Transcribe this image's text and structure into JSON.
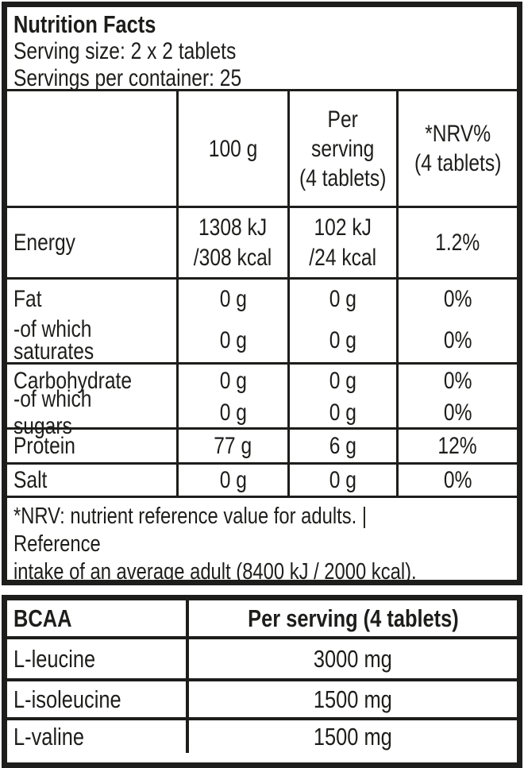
{
  "label": {
    "title": "Nutrition Facts",
    "serving_size": "Serving size: 2 x 2 tablets",
    "servings_per_container": "Servings per container: 25"
  },
  "nutrition_table": {
    "col_headers": {
      "per_100g": "100 g",
      "per_serving": "Per\nserving\n(4 tablets)",
      "nrv": "*NRV%\n(4 tablets)"
    },
    "rows": [
      {
        "label": "Energy",
        "per_100g": "1308 kJ\n/308 kcal",
        "per_serving": "102 kJ\n/24 kcal",
        "nrv": "1.2%"
      },
      {
        "label": "Fat",
        "per_100g": "0 g",
        "per_serving": "0 g",
        "nrv": "0%"
      },
      {
        "label": "-of which\nsaturates",
        "per_100g": "0 g",
        "per_serving": "0 g",
        "nrv": "0%"
      },
      {
        "label": "Carbohydrate",
        "per_100g": "0 g",
        "per_serving": "0 g",
        "nrv": "0%"
      },
      {
        "label": "-of which sugars",
        "per_100g": "0 g",
        "per_serving": "0 g",
        "nrv": "0%"
      },
      {
        "label": "Protein",
        "per_100g": "77 g",
        "per_serving": "6 g",
        "nrv": "12%"
      },
      {
        "label": "Salt",
        "per_100g": "0 g",
        "per_serving": "0 g",
        "nrv": "0%"
      }
    ],
    "footnote": "*NRV: nutrient reference value for adults. | Reference\nintake of an average adult (8400 kJ / 2000 kcal)."
  },
  "bcaa_table": {
    "col_headers": {
      "name": "BCAA",
      "per_serving": "Per serving (4 tablets)"
    },
    "rows": [
      {
        "label": "L-leucine",
        "amount": "3000 mg"
      },
      {
        "label": "L-isoleucine",
        "amount": "1500 mg"
      },
      {
        "label": "L-valine",
        "amount": "1500 mg"
      }
    ]
  },
  "colors": {
    "ink": "#1d1d1b",
    "background": "#ffffff"
  }
}
